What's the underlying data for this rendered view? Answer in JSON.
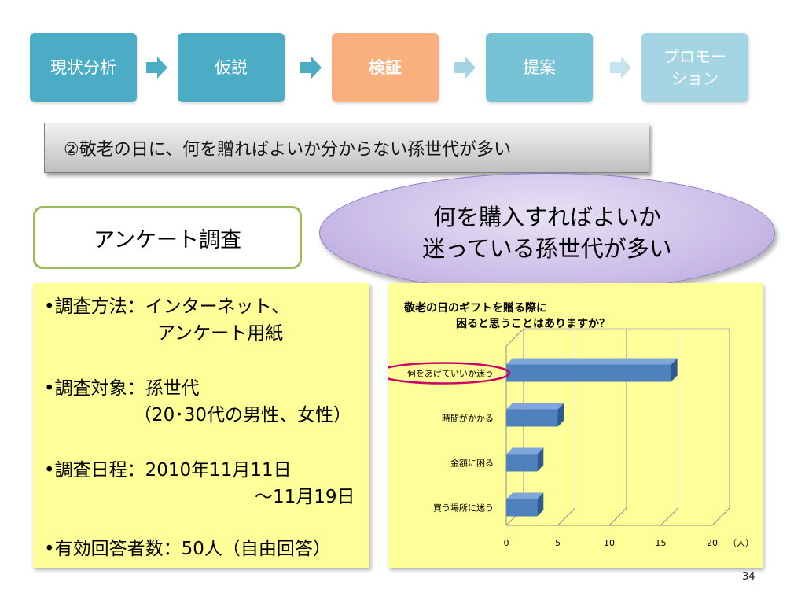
{
  "process_steps": [
    {
      "label": "現状分析",
      "color": "#4bacc6"
    },
    {
      "label": "仮説",
      "color": "#4bacc6"
    },
    {
      "label": "検証",
      "color": "#f8b07c"
    },
    {
      "label": "提案",
      "color": "#78c2d6"
    },
    {
      "label": "プロモー\nション",
      "color": "#a5d5e3"
    }
  ],
  "banner": {
    "text": "②敬老の日に、何を贈ればよいか分からない孫世代が多い"
  },
  "survey_tag": {
    "label": "アンケート調査"
  },
  "callout": {
    "text": "何を購入すればよいか\n迷っている孫世代が多い"
  },
  "survey_info": {
    "method_line1": "•調査方法：インターネット、",
    "method_line2": "アンケート用紙",
    "target_line1": "•調査対象：孫世代",
    "target_line2": "（20･30代の男性、女性）",
    "date_line1": "•調査日程：2010年11月11日",
    "date_line2": "～11月19日",
    "respondents": "•有効回答者数：50人（自由回答）"
  },
  "chart_data": {
    "type": "bar",
    "orientation": "horizontal",
    "title": "敬老の日のギフトを贈る際に\n困ると思うことはありますか？",
    "title_line1": "敬老の日のギフトを贈る際に",
    "title_line2": "困ると思うことはありますか？",
    "categories": [
      "何をあげていいか迷う",
      "時間がかかる",
      "金額に困る",
      "買う場所に迷う"
    ],
    "values": [
      16,
      5,
      3,
      3
    ],
    "xlim": [
      0,
      20
    ],
    "xticks": [
      "0",
      "5",
      "10",
      "15",
      "20"
    ],
    "xunit": "（人）",
    "grid": true,
    "bar_color": "#4f81bd",
    "highlight_category": "何をあげていいか迷う",
    "highlight_color": "#cc0066"
  },
  "page_number": "34"
}
